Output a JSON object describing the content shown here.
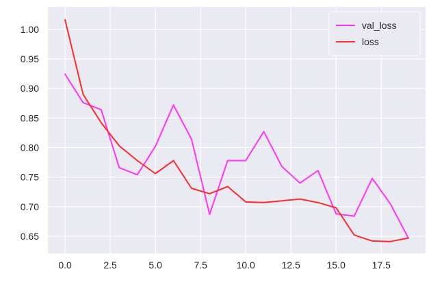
{
  "chart_data": {
    "type": "line",
    "title": "",
    "xlabel": "",
    "ylabel": "",
    "x": [
      0,
      1,
      2,
      3,
      4,
      5,
      6,
      7,
      8,
      9,
      10,
      11,
      12,
      13,
      14,
      15,
      16,
      17,
      18,
      19
    ],
    "series": [
      {
        "name": "val_loss",
        "color": "#ff33ff",
        "values": [
          0.924,
          0.876,
          0.864,
          0.766,
          0.754,
          0.802,
          0.872,
          0.814,
          0.687,
          0.778,
          0.778,
          0.827,
          0.768,
          0.74,
          0.761,
          0.688,
          0.684,
          0.748,
          0.705,
          0.647
        ]
      },
      {
        "name": "loss",
        "color": "#ff2a2a",
        "values": [
          1.016,
          0.89,
          0.842,
          0.803,
          0.778,
          0.756,
          0.778,
          0.731,
          0.722,
          0.734,
          0.708,
          0.707,
          0.71,
          0.713,
          0.707,
          0.698,
          0.652,
          0.642,
          0.641,
          0.647
        ]
      }
    ],
    "xlim": [
      -0.95,
      19.95
    ],
    "ylim": [
      0.621,
      1.038
    ],
    "xticks": [
      0.0,
      2.5,
      5.0,
      7.5,
      10.0,
      12.5,
      15.0,
      17.5
    ],
    "xtick_labels": [
      "0.0",
      "2.5",
      "5.0",
      "7.5",
      "10.0",
      "12.5",
      "15.0",
      "17.5"
    ],
    "yticks": [
      0.65,
      0.7,
      0.75,
      0.8,
      0.85,
      0.9,
      0.95,
      1.0
    ],
    "ytick_labels": [
      "0.65",
      "0.70",
      "0.75",
      "0.80",
      "0.85",
      "0.90",
      "0.95",
      "1.00"
    ],
    "grid": true,
    "legend_position": "top-right",
    "background_color": "#eaeaf2",
    "grid_color": "#ffffff"
  }
}
